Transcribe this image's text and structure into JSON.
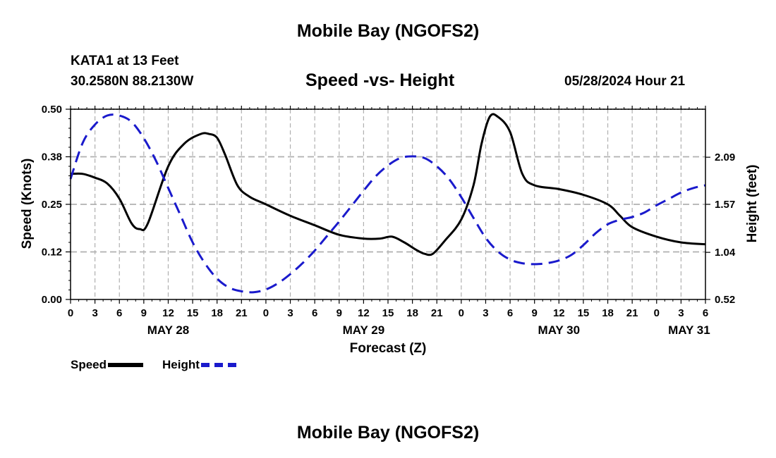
{
  "header": {
    "title": "Mobile Bay (NGOFS2)",
    "station": "KATA1 at 13 Feet",
    "coords": "30.2580N  88.2130W",
    "subtitle": "Speed -vs- Height",
    "timestamp": "05/28/2024 Hour 21"
  },
  "footer": {
    "title": "Mobile Bay (NGOFS2)"
  },
  "legend": {
    "speed": "Speed",
    "height": "Height"
  },
  "colors": {
    "speed": "#000000",
    "height": "#1a1acc",
    "grid": "#b0b0b0"
  },
  "chart_data": {
    "type": "line",
    "title": "Speed -vs- Height",
    "xlabel": "Forecast (Z)",
    "ylabel": "Speed (Knots)",
    "y2label": "Height (feet)",
    "x_range_hours": [
      0,
      78
    ],
    "x_ticks": [
      {
        "h": 0,
        "label": "0"
      },
      {
        "h": 3,
        "label": "3"
      },
      {
        "h": 6,
        "label": "6"
      },
      {
        "h": 9,
        "label": "9"
      },
      {
        "h": 12,
        "label": "12"
      },
      {
        "h": 15,
        "label": "15"
      },
      {
        "h": 18,
        "label": "18"
      },
      {
        "h": 21,
        "label": "21"
      },
      {
        "h": 24,
        "label": "0"
      },
      {
        "h": 27,
        "label": "3"
      },
      {
        "h": 30,
        "label": "6"
      },
      {
        "h": 33,
        "label": "9"
      },
      {
        "h": 36,
        "label": "12"
      },
      {
        "h": 39,
        "label": "15"
      },
      {
        "h": 42,
        "label": "18"
      },
      {
        "h": 45,
        "label": "21"
      },
      {
        "h": 48,
        "label": "0"
      },
      {
        "h": 51,
        "label": "3"
      },
      {
        "h": 54,
        "label": "6"
      },
      {
        "h": 57,
        "label": "9"
      },
      {
        "h": 60,
        "label": "12"
      },
      {
        "h": 63,
        "label": "15"
      },
      {
        "h": 66,
        "label": "18"
      },
      {
        "h": 69,
        "label": "21"
      },
      {
        "h": 72,
        "label": "0"
      },
      {
        "h": 75,
        "label": "3"
      },
      {
        "h": 78,
        "label": "6"
      }
    ],
    "day_labels": [
      {
        "h": 12,
        "label": "MAY 28"
      },
      {
        "h": 36,
        "label": "MAY 29"
      },
      {
        "h": 60,
        "label": "MAY 30"
      },
      {
        "h": 76,
        "label": "MAY 31"
      }
    ],
    "y_left": {
      "range": [
        0,
        0.5
      ],
      "ticks": [
        {
          "v": 0,
          "label": "0.00"
        },
        {
          "v": 0.125,
          "label": "0.12"
        },
        {
          "v": 0.25,
          "label": "0.25"
        },
        {
          "v": 0.375,
          "label": "0.38"
        },
        {
          "v": 0.5,
          "label": "0.50"
        }
      ]
    },
    "y_right": {
      "range": [
        0.52,
        2.62
      ],
      "ticks": [
        {
          "v": 0.52,
          "label": "0.52"
        },
        {
          "v": 1.04,
          "label": "1.04"
        },
        {
          "v": 1.57,
          "label": "1.57"
        },
        {
          "v": 2.09,
          "label": "2.09"
        }
      ]
    },
    "series": [
      {
        "name": "Speed",
        "axis": "left",
        "style": "solid",
        "x": [
          0,
          1.5,
          3,
          4.5,
          6,
          7.5,
          8.5,
          9.5,
          12,
          14,
          16,
          17,
          18,
          19,
          20.5,
          22,
          24,
          27,
          30,
          33,
          36,
          38,
          39.5,
          41,
          42.5,
          43.5,
          44.5,
          46,
          48,
          49.5,
          50.5,
          51.5,
          52.5,
          54,
          55.5,
          57,
          60,
          63,
          66,
          67.5,
          69,
          72,
          75,
          78
        ],
        "values": [
          0.33,
          0.33,
          0.32,
          0.305,
          0.265,
          0.2,
          0.185,
          0.2,
          0.35,
          0.41,
          0.435,
          0.435,
          0.425,
          0.38,
          0.3,
          0.27,
          0.25,
          0.22,
          0.195,
          0.17,
          0.16,
          0.16,
          0.165,
          0.15,
          0.13,
          0.12,
          0.12,
          0.155,
          0.21,
          0.3,
          0.41,
          0.48,
          0.48,
          0.44,
          0.33,
          0.3,
          0.29,
          0.275,
          0.25,
          0.22,
          0.19,
          0.165,
          0.15,
          0.145
        ]
      },
      {
        "name": "Height",
        "axis": "right",
        "style": "dashed",
        "x": [
          0,
          1.5,
          3,
          4.5,
          6,
          7.5,
          9,
          10.5,
          12,
          13.5,
          15,
          16.5,
          18,
          19.5,
          21,
          22.5,
          24,
          25.5,
          27,
          28.5,
          30,
          31.5,
          33,
          34.5,
          36,
          37.5,
          39,
          40.5,
          42,
          43.5,
          45,
          46.5,
          48,
          49.5,
          51,
          52.5,
          54,
          55.5,
          57,
          58.5,
          60,
          61.5,
          63,
          64.5,
          66,
          67.5,
          69,
          70.5,
          72,
          73.5,
          75,
          76.5,
          78
        ],
        "values": [
          1.85,
          2.25,
          2.45,
          2.55,
          2.55,
          2.48,
          2.3,
          2.05,
          1.75,
          1.45,
          1.15,
          0.92,
          0.75,
          0.65,
          0.61,
          0.6,
          0.63,
          0.7,
          0.8,
          0.92,
          1.06,
          1.22,
          1.38,
          1.55,
          1.72,
          1.88,
          2.0,
          2.08,
          2.1,
          2.08,
          1.99,
          1.85,
          1.65,
          1.42,
          1.2,
          1.05,
          0.96,
          0.92,
          0.91,
          0.92,
          0.95,
          1.01,
          1.12,
          1.25,
          1.35,
          1.4,
          1.43,
          1.48,
          1.56,
          1.63,
          1.7,
          1.75,
          1.78
        ]
      }
    ]
  }
}
